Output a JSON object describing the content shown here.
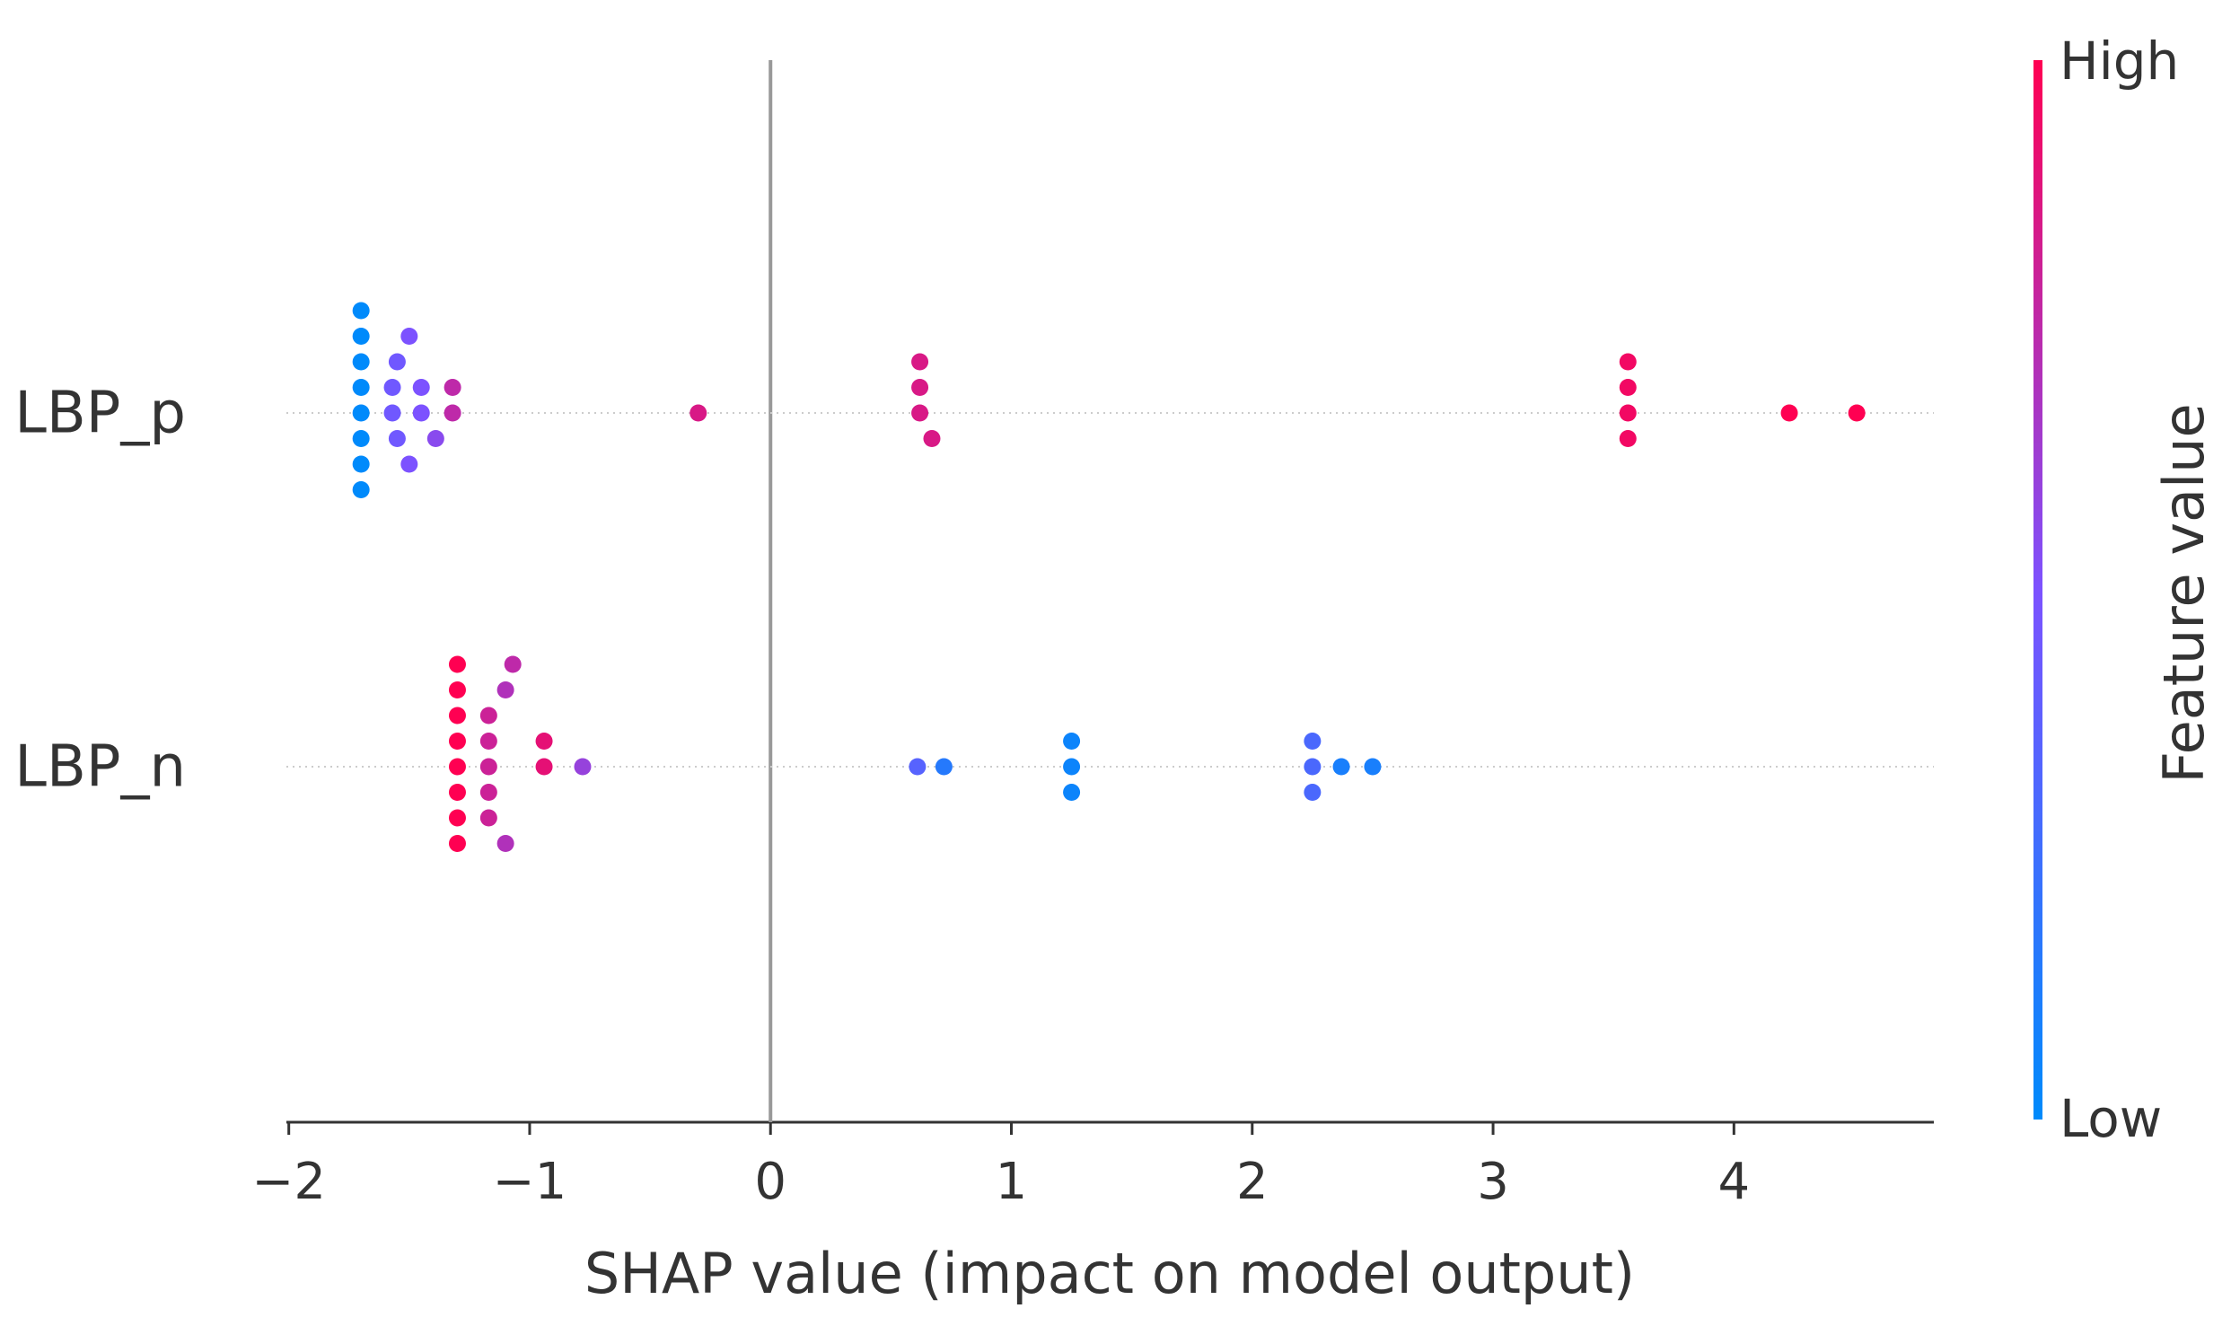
{
  "chart_data": {
    "type": "beeswarm",
    "xlabel": "SHAP value (impact on model output)",
    "xlim": [
      -2.01,
      4.83
    ],
    "xticks": [
      {
        "value": -2,
        "label": "−2"
      },
      {
        "value": -1,
        "label": "−1"
      },
      0,
      1,
      2,
      3,
      4
    ],
    "vline": 0,
    "colorbar": {
      "label": "Feature value",
      "low": "Low",
      "high": "High",
      "colormap": [
        "#008afb",
        "#7c52ff",
        "#ff0052"
      ]
    },
    "series": [
      {
        "name": "LBP_p",
        "values": [
          -1.7,
          -1.7,
          -1.7,
          -1.7,
          -1.7,
          -1.7,
          -1.7,
          -1.7,
          -1.57,
          -1.57,
          -1.55,
          -1.55,
          -1.5,
          -1.5,
          -1.45,
          -1.45,
          -1.39,
          -1.32,
          -1.32,
          -0.3,
          0.62,
          0.62,
          0.67,
          0.62,
          3.56,
          3.56,
          3.56,
          3.56,
          4.23,
          4.51
        ],
        "feature_values": [
          0,
          0,
          0,
          0,
          0,
          0,
          0,
          0,
          0.45,
          0.45,
          0.45,
          0.45,
          0.5,
          0.5,
          0.5,
          0.5,
          0.55,
          0.75,
          0.75,
          0.85,
          0.85,
          0.85,
          0.85,
          0.85,
          0.95,
          0.95,
          0.95,
          0.95,
          1,
          1
        ]
      },
      {
        "name": "LBP_n",
        "values": [
          -1.3,
          -1.3,
          -1.3,
          -1.3,
          -1.3,
          -1.3,
          -1.3,
          -1.3,
          -1.17,
          -1.17,
          -1.17,
          -1.17,
          -1.17,
          -1.1,
          -1.1,
          -1.07,
          -0.94,
          -0.94,
          -0.78,
          0.61,
          0.72,
          1.25,
          1.25,
          1.25,
          2.25,
          2.25,
          2.25,
          2.37,
          2.5
        ],
        "feature_values": [
          1,
          1,
          1,
          1,
          1,
          1,
          1,
          1,
          0.8,
          0.8,
          0.8,
          0.8,
          0.8,
          0.7,
          0.7,
          0.75,
          0.9,
          0.9,
          0.6,
          0.35,
          0.15,
          0.05,
          0.05,
          0.05,
          0.3,
          0.3,
          0.3,
          0.1,
          0.1
        ]
      }
    ]
  }
}
